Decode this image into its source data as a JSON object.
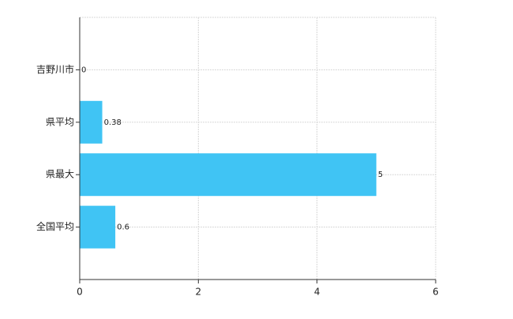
{
  "chart_data": {
    "type": "hbar",
    "categories": [
      "吉野川市",
      "県平均",
      "県最大",
      "全国平均"
    ],
    "values": [
      0,
      0.38,
      5,
      0.6
    ],
    "color": "#40c4f4",
    "xlim": [
      0,
      6
    ],
    "xticks": [
      0,
      2,
      4,
      6
    ],
    "grid": true
  }
}
